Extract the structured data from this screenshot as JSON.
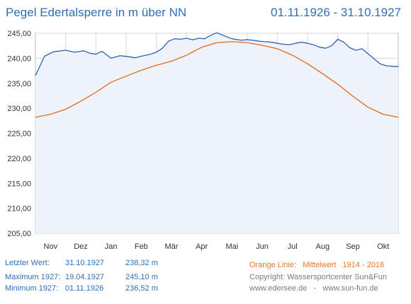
{
  "header": {
    "title": "Pegel Edertalsperre in m über NN",
    "date_range": "01.11.1926 - 31.10.1927"
  },
  "chart_data": {
    "type": "line",
    "ylim": [
      205,
      245
    ],
    "yticks": [
      "205,00",
      "210,00",
      "215,00",
      "220,00",
      "225,00",
      "230,00",
      "235,00",
      "240,00",
      "245,00"
    ],
    "xticks": [
      "Nov",
      "Dez",
      "Jan",
      "Feb",
      "Mär",
      "Apr",
      "Mai",
      "Jun",
      "Jul",
      "Aug",
      "Sep",
      "Okt"
    ],
    "grid": true,
    "colors": {
      "level": "#2c62b5",
      "mean": "#e06a1b",
      "fill": "#eef2fb",
      "grid": "#d6d6d6"
    },
    "series": [
      {
        "key": "level",
        "x": [
          0,
          0.3,
          0.6,
          1.0,
          1.3,
          1.6,
          1.8,
          2.0,
          2.2,
          2.5,
          2.8,
          3.1,
          3.3,
          3.5,
          3.8,
          4.0,
          4.2,
          4.4,
          4.6,
          4.8,
          5.0,
          5.2,
          5.4,
          5.6,
          5.8,
          6.0,
          6.2,
          6.5,
          6.8,
          7.0,
          7.2,
          7.4,
          7.6,
          7.8,
          8.0,
          8.2,
          8.4,
          8.6,
          8.8,
          9.0,
          9.2,
          9.4,
          9.6,
          9.8,
          10.0,
          10.2,
          10.4,
          10.6,
          10.8,
          11.0,
          11.2,
          11.4,
          11.6,
          11.8,
          12.0
        ],
        "values": [
          236.52,
          240.4,
          241.3,
          241.6,
          241.2,
          241.5,
          241.0,
          240.8,
          241.4,
          240.0,
          240.5,
          240.3,
          240.1,
          240.4,
          240.8,
          241.2,
          242.0,
          243.4,
          243.9,
          243.8,
          244.0,
          243.7,
          244.0,
          243.9,
          244.6,
          245.1,
          244.6,
          243.9,
          243.6,
          243.7,
          243.6,
          243.4,
          243.3,
          243.2,
          243.0,
          242.8,
          242.7,
          243.0,
          243.2,
          243.0,
          242.7,
          242.2,
          242.0,
          242.5,
          243.8,
          243.2,
          242.1,
          241.6,
          241.9,
          240.9,
          239.9,
          238.9,
          238.5,
          238.4,
          238.32
        ]
      },
      {
        "key": "mean",
        "x": [
          0,
          0.5,
          1.0,
          1.5,
          2.0,
          2.5,
          3.0,
          3.5,
          4.0,
          4.5,
          5.0,
          5.5,
          6.0,
          6.5,
          7.0,
          7.5,
          8.0,
          8.5,
          9.0,
          9.5,
          10.0,
          10.5,
          11.0,
          11.5,
          12.0
        ],
        "values": [
          228.2,
          228.8,
          229.8,
          231.4,
          233.2,
          235.2,
          236.4,
          237.6,
          238.6,
          239.4,
          240.6,
          242.2,
          243.1,
          243.3,
          243.1,
          242.6,
          241.9,
          240.6,
          238.9,
          236.9,
          234.8,
          232.4,
          230.2,
          228.8,
          228.2
        ]
      }
    ]
  },
  "footer": {
    "last_label": "Letzter Wert:",
    "last_date": "31.10.1927",
    "last_value": "238,32 m",
    "max_label": "Maximum 1927:",
    "max_date": "19.04.1927",
    "max_value": "245,10 m",
    "min_label": "Minimum  1927:",
    "min_date": "01.11.1926",
    "min_value": "236,52 m",
    "orange_label": "Orange Linie:",
    "orange_desc": "Mittelwert",
    "orange_range": "1914 - 2016",
    "copyright": "Copyright: Wassersportcenter Sun&Fun",
    "site1": "www.edersee.de",
    "separator": "-",
    "site2": "www.sun-fun.de"
  }
}
